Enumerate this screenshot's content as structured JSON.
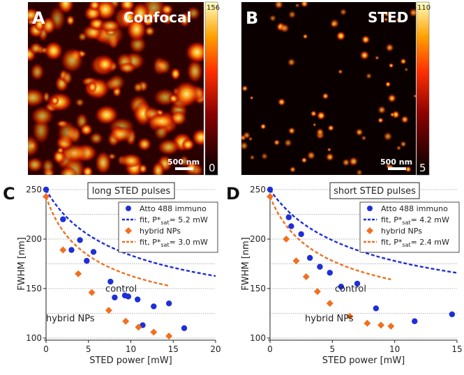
{
  "panels_images": [
    {
      "letter": "A",
      "title": "Confocal",
      "colorbar_max": "156",
      "colorbar_min": "0",
      "scalebar": "500 nm"
    },
    {
      "letter": "B",
      "title": "STED",
      "colorbar_max": "110",
      "colorbar_min": "5",
      "scalebar": "500 nm"
    }
  ],
  "colors": {
    "blue": "#1f2fd6",
    "orange": "#f07020",
    "grid": "#9a9a9a"
  },
  "chart_data": [
    {
      "type": "scatter",
      "panel": "C",
      "title": "long STED pulses",
      "xlabel": "STED power [mW]",
      "ylabel": "FWHM [nm]",
      "xlim": [
        0,
        20
      ],
      "ylim": [
        100,
        250
      ],
      "xticks": [
        0,
        5,
        10,
        15,
        20
      ],
      "yticks": [
        100,
        150,
        200,
        250
      ],
      "grid_y": [
        100,
        125,
        150,
        175,
        200,
        225,
        250
      ],
      "series": [
        {
          "name": "Atto 488 immuno",
          "marker": "circle",
          "color": "#1f2fd6",
          "x": [
            0,
            2.0,
            3.0,
            4.0,
            4.8,
            5.6,
            7.6,
            8.1,
            9.3,
            9.7,
            10.8,
            11.4,
            12.7,
            14.5,
            16.3
          ],
          "y": [
            250,
            220,
            189,
            199,
            178,
            187,
            157,
            141,
            143,
            142,
            139,
            113,
            132,
            135,
            110
          ]
        },
        {
          "name": "fit, P*sat= 5.2 mW",
          "label_main": "fit, P*",
          "label_sub": "sat",
          "label_tail": "= 5.2 mW",
          "line": "dashed",
          "color": "#1f2fd6",
          "y0": 250,
          "yinf": 90,
          "psat": 5.2,
          "xmax": 20
        },
        {
          "name": "hybrid NPs",
          "marker": "diamond",
          "color": "#f07020",
          "x": [
            0,
            2.0,
            3.8,
            5.4,
            7.4,
            9.4,
            10.9,
            12.7,
            14.5
          ],
          "y": [
            243,
            189,
            165,
            146,
            128,
            117,
            111,
            106,
            102
          ]
        },
        {
          "name": "fit, P*sat= 3.0 mW",
          "label_main": "fit, P*",
          "label_sub": "sat",
          "label_tail": "= 3.0 mW",
          "line": "dashed",
          "color": "#f07020",
          "y0": 243,
          "yinf": 89,
          "psat": 3.0,
          "xmax": 14.5
        }
      ],
      "annotations": [
        {
          "text": "control",
          "color": "#1f2fd6",
          "x": 7,
          "y": 147
        },
        {
          "text": "hybrid NPs",
          "color": "#f07020",
          "x": 0,
          "y": 117
        }
      ]
    },
    {
      "type": "scatter",
      "panel": "D",
      "title": "short STED pulses",
      "xlabel": "STED power [mW]",
      "ylabel": "FWHM [nm]",
      "xlim": [
        0,
        15
      ],
      "ylim": [
        100,
        250
      ],
      "xticks": [
        0,
        5,
        10,
        15
      ],
      "yticks": [
        100,
        150,
        200,
        250
      ],
      "grid_y": [
        100,
        125,
        150,
        175,
        200,
        225,
        250
      ],
      "series": [
        {
          "name": "Atto 488 immuno",
          "marker": "circle",
          "color": "#1f2fd6",
          "x": [
            0,
            1.5,
            1.7,
            2.5,
            3.2,
            4.0,
            4.8,
            5.7,
            7.0,
            8.5,
            11.6,
            14.6
          ],
          "y": [
            250,
            222,
            213,
            205,
            181,
            172,
            166,
            152,
            155,
            130,
            117,
            124
          ]
        },
        {
          "name": "fit, P*sat= 4.2 mW",
          "label_main": "fit, P*",
          "label_sub": "sat",
          "label_tail": "= 4.2 mW",
          "line": "dashed",
          "color": "#1f2fd6",
          "y0": 250,
          "yinf": 92,
          "psat": 4.2,
          "xmax": 15
        },
        {
          "name": "hybrid NPs",
          "marker": "diamond",
          "color": "#f07020",
          "x": [
            0,
            1.3,
            2.1,
            2.9,
            3.8,
            4.8,
            6.4,
            7.8,
            8.9,
            9.7
          ],
          "y": [
            243,
            200,
            178,
            162,
            147,
            135,
            122,
            115,
            113,
            112
          ]
        },
        {
          "name": "fit, P*sat= 2.4 mW",
          "label_main": "fit, P*",
          "label_sub": "sat",
          "label_tail": "= 2.4 mW",
          "line": "dashed",
          "color": "#f07020",
          "y0": 243,
          "yinf": 92,
          "psat": 2.4,
          "xmax": 9.7
        }
      ],
      "annotations": [
        {
          "text": "control",
          "color": "#1f2fd6",
          "x": 5.2,
          "y": 147
        },
        {
          "text": "hybrid NPs",
          "color": "#f07020",
          "x": 2.8,
          "y": 117
        }
      ]
    }
  ]
}
